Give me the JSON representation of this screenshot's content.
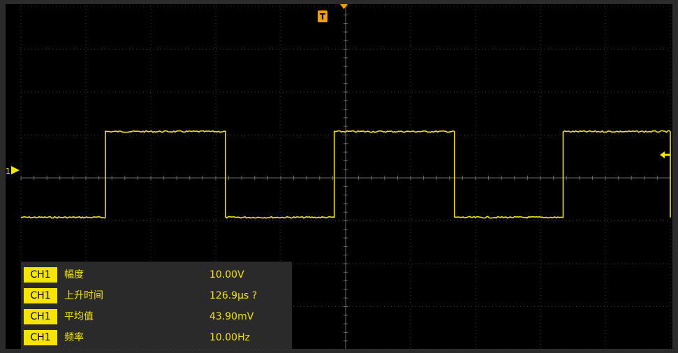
{
  "scope": {
    "channel_marker": "1",
    "trigger_marker": "T",
    "trace_color": "#f5e500",
    "marker_color": "#f5a000",
    "grid_color": "#3c3c3c",
    "horizontal_divisions": 10,
    "vertical_divisions": 8,
    "waveform": {
      "type": "square",
      "high_division": 2.7,
      "low_division": -2.3,
      "edges_division": [
        2.6,
        6.3,
        9.65,
        13.35,
        16.7,
        20.4
      ],
      "start_level": "low"
    }
  },
  "measurements": [
    {
      "channel": "CH1",
      "name": "幅度",
      "value": "10.00V"
    },
    {
      "channel": "CH1",
      "name": "上升时间",
      "value": "126.9µs ?"
    },
    {
      "channel": "CH1",
      "name": "平均值",
      "value": "43.90mV"
    },
    {
      "channel": "CH1",
      "name": "频率",
      "value": "10.00Hz"
    }
  ]
}
